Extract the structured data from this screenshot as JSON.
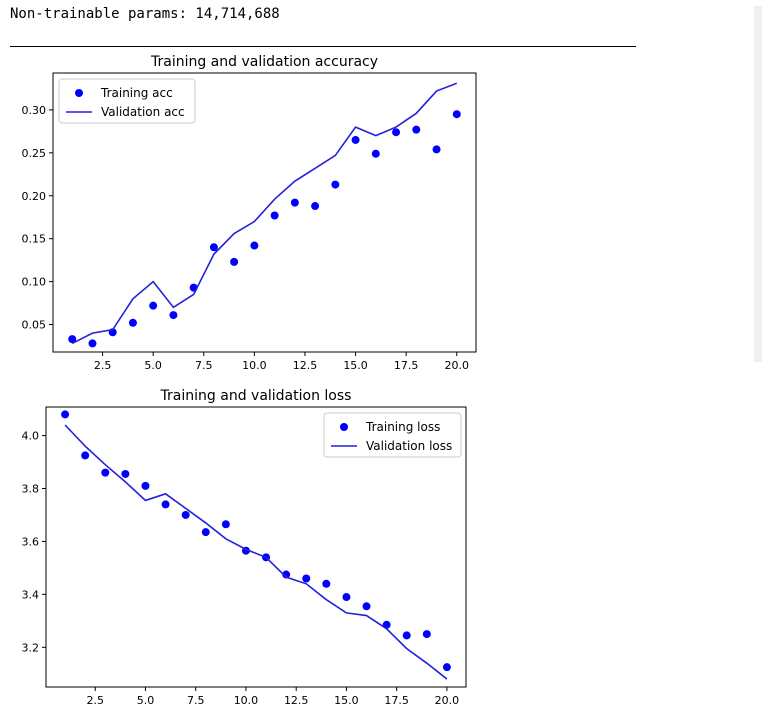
{
  "console": {
    "params_line": "Non-trainable params: 14,714,688"
  },
  "chart_data": [
    {
      "type": "line",
      "title": "Training and validation accuracy",
      "xlabel": "",
      "ylabel": "",
      "xlim": [
        0.05,
        20.95
      ],
      "ylim": [
        0.018,
        0.343
      ],
      "xticks": [
        2.5,
        5.0,
        7.5,
        10.0,
        12.5,
        15.0,
        17.5,
        20.0
      ],
      "xtick_labels": [
        "2.5",
        "5.0",
        "7.5",
        "10.0",
        "12.5",
        "15.0",
        "17.5",
        "20.0"
      ],
      "yticks": [
        0.05,
        0.1,
        0.15,
        0.2,
        0.25,
        0.3
      ],
      "ytick_labels": [
        "0.05",
        "0.10",
        "0.15",
        "0.20",
        "0.25",
        "0.30"
      ],
      "grid": false,
      "legend_position": "upper left",
      "series": [
        {
          "name": "Training acc",
          "style": "dots",
          "color": "#0000ff",
          "x": [
            1,
            2,
            3,
            4,
            5,
            6,
            7,
            8,
            9,
            10,
            11,
            12,
            13,
            14,
            15,
            16,
            17,
            18,
            19,
            20
          ],
          "y": [
            0.033,
            0.028,
            0.041,
            0.052,
            0.072,
            0.061,
            0.093,
            0.14,
            0.123,
            0.142,
            0.177,
            0.192,
            0.188,
            0.213,
            0.265,
            0.249,
            0.274,
            0.277,
            0.254,
            0.295
          ]
        },
        {
          "name": "Validation acc",
          "style": "line",
          "color": "#2222dd",
          "x": [
            1,
            2,
            3,
            4,
            5,
            6,
            7,
            8,
            9,
            10,
            11,
            12,
            13,
            14,
            15,
            16,
            17,
            18,
            19,
            20
          ],
          "y": [
            0.028,
            0.04,
            0.044,
            0.08,
            0.1,
            0.07,
            0.085,
            0.132,
            0.156,
            0.17,
            0.196,
            0.217,
            0.232,
            0.247,
            0.28,
            0.27,
            0.28,
            0.296,
            0.322,
            0.331
          ]
        }
      ]
    },
    {
      "type": "line",
      "title": "Training and validation loss",
      "xlabel": "",
      "ylabel": "",
      "xlim": [
        0.05,
        20.95
      ],
      "ylim": [
        3.05,
        4.108
      ],
      "xticks": [
        2.5,
        5.0,
        7.5,
        10.0,
        12.5,
        15.0,
        17.5,
        20.0
      ],
      "xtick_labels": [
        "2.5",
        "5.0",
        "7.5",
        "10.0",
        "12.5",
        "15.0",
        "17.5",
        "20.0"
      ],
      "yticks": [
        3.2,
        3.4,
        3.6,
        3.8,
        4.0
      ],
      "ytick_labels": [
        "3.2",
        "3.4",
        "3.6",
        "3.8",
        "4.0"
      ],
      "grid": false,
      "legend_position": "upper right",
      "series": [
        {
          "name": "Training loss",
          "style": "dots",
          "color": "#0000ff",
          "x": [
            1,
            2,
            3,
            4,
            5,
            6,
            7,
            8,
            9,
            10,
            11,
            12,
            13,
            14,
            15,
            16,
            17,
            18,
            19,
            20
          ],
          "y": [
            4.08,
            3.925,
            3.86,
            3.855,
            3.81,
            3.74,
            3.7,
            3.635,
            3.665,
            3.565,
            3.54,
            3.475,
            3.46,
            3.44,
            3.39,
            3.355,
            3.285,
            3.245,
            3.25,
            3.125
          ]
        },
        {
          "name": "Validation loss",
          "style": "line",
          "color": "#2222dd",
          "x": [
            1,
            2,
            3,
            4,
            5,
            6,
            7,
            8,
            9,
            10,
            11,
            12,
            13,
            14,
            15,
            16,
            17,
            18,
            19,
            20
          ],
          "y": [
            4.04,
            3.96,
            3.89,
            3.825,
            3.755,
            3.78,
            3.725,
            3.67,
            3.61,
            3.57,
            3.54,
            3.465,
            3.44,
            3.38,
            3.33,
            3.32,
            3.27,
            3.195,
            3.14,
            3.08
          ]
        }
      ]
    }
  ]
}
